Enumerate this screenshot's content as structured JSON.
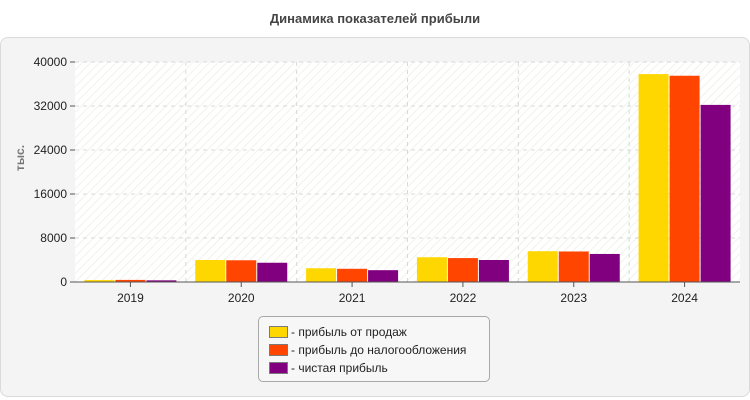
{
  "chart_data": {
    "type": "bar",
    "title": "Динамика показателей прибыли",
    "xlabel": "",
    "ylabel": "тыс.",
    "ylim": [
      0,
      40000
    ],
    "yticks": [
      "0",
      "8000",
      "16000",
      "24000",
      "32000",
      "40000"
    ],
    "categories": [
      "2019",
      "2020",
      "2021",
      "2022",
      "2023",
      "2024"
    ],
    "series": [
      {
        "name": "- прибыль от продаж",
        "color": "#ffd700",
        "values": [
          350,
          4000,
          2500,
          4500,
          5600,
          37800
        ]
      },
      {
        "name": "- прибыль до налогообложения",
        "color": "#ff4500",
        "values": [
          380,
          3950,
          2400,
          4350,
          5550,
          37500
        ]
      },
      {
        "name": "- чистая прибыль",
        "color": "#800080",
        "values": [
          300,
          3500,
          2150,
          4000,
          5100,
          32200
        ]
      }
    ],
    "grid": true,
    "legend_position": "bottom-center"
  }
}
